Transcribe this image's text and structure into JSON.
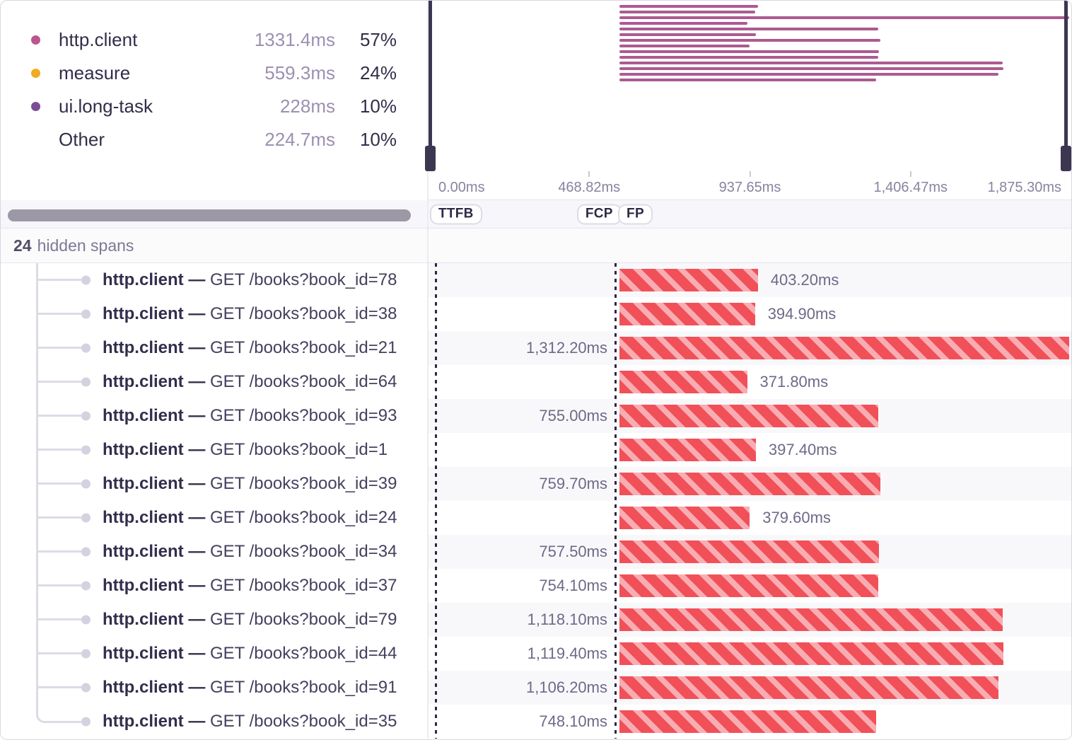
{
  "legend": {
    "items": [
      {
        "label": "http.client",
        "dot_color": "#b9578d",
        "value": "1331.4ms",
        "pct": "57%"
      },
      {
        "label": "measure",
        "dot_color": "#f0ab21",
        "value": "559.3ms",
        "pct": "24%"
      },
      {
        "label": "ui.long-task",
        "dot_color": "#7b4f93",
        "value": "228ms",
        "pct": "10%"
      },
      {
        "label": "Other",
        "dot_color": null,
        "value": "224.7ms",
        "pct": "10%"
      }
    ]
  },
  "timeline": {
    "range_ms": 1875.3,
    "span_start_ms": 557.6,
    "axis_labels": [
      {
        "text": "0.00ms",
        "ms": 0,
        "align": "left"
      },
      {
        "text": "468.82ms",
        "ms": 468.82,
        "align": "center"
      },
      {
        "text": "937.65ms",
        "ms": 937.65,
        "align": "center"
      },
      {
        "text": "1,406.47ms",
        "ms": 1406.47,
        "align": "center"
      },
      {
        "text": "1,875.30ms",
        "ms": 1875.3,
        "align": "right"
      }
    ],
    "ticks_ms": [
      468.82,
      937.65,
      1406.47
    ],
    "marker_lines_ms": [
      19,
      543
    ]
  },
  "vitals": [
    {
      "label": "TTFB",
      "ms": 4
    },
    {
      "label": "FCP",
      "ms": 433
    },
    {
      "label": "FP",
      "ms": 553
    }
  ],
  "hidden_spans": {
    "count": "24",
    "label": "hidden spans"
  },
  "span_rows": [
    {
      "op": "http.client",
      "separator": "—",
      "description": "GET /books?book_id=78",
      "duration_ms": 403.2,
      "duration_label": "403.20ms",
      "label_side": "right"
    },
    {
      "op": "http.client",
      "separator": "—",
      "description": "GET /books?book_id=38",
      "duration_ms": 394.9,
      "duration_label": "394.90ms",
      "label_side": "right"
    },
    {
      "op": "http.client",
      "separator": "—",
      "description": "GET /books?book_id=21",
      "duration_ms": 1312.2,
      "duration_label": "1,312.20ms",
      "label_side": "left"
    },
    {
      "op": "http.client",
      "separator": "—",
      "description": "GET /books?book_id=64",
      "duration_ms": 371.8,
      "duration_label": "371.80ms",
      "label_side": "right"
    },
    {
      "op": "http.client",
      "separator": "—",
      "description": "GET /books?book_id=93",
      "duration_ms": 755.0,
      "duration_label": "755.00ms",
      "label_side": "left"
    },
    {
      "op": "http.client",
      "separator": "—",
      "description": "GET /books?book_id=1",
      "duration_ms": 397.4,
      "duration_label": "397.40ms",
      "label_side": "right"
    },
    {
      "op": "http.client",
      "separator": "—",
      "description": "GET /books?book_id=39",
      "duration_ms": 759.7,
      "duration_label": "759.70ms",
      "label_side": "left"
    },
    {
      "op": "http.client",
      "separator": "—",
      "description": "GET /books?book_id=24",
      "duration_ms": 379.6,
      "duration_label": "379.60ms",
      "label_side": "right"
    },
    {
      "op": "http.client",
      "separator": "—",
      "description": "GET /books?book_id=34",
      "duration_ms": 757.5,
      "duration_label": "757.50ms",
      "label_side": "left"
    },
    {
      "op": "http.client",
      "separator": "—",
      "description": "GET /books?book_id=37",
      "duration_ms": 754.1,
      "duration_label": "754.10ms",
      "label_side": "left"
    },
    {
      "op": "http.client",
      "separator": "—",
      "description": "GET /books?book_id=79",
      "duration_ms": 1118.1,
      "duration_label": "1,118.10ms",
      "label_side": "left"
    },
    {
      "op": "http.client",
      "separator": "—",
      "description": "GET /books?book_id=44",
      "duration_ms": 1119.4,
      "duration_label": "1,119.40ms",
      "label_side": "left"
    },
    {
      "op": "http.client",
      "separator": "—",
      "description": "GET /books?book_id=91",
      "duration_ms": 1106.2,
      "duration_label": "1,106.20ms",
      "label_side": "left"
    },
    {
      "op": "http.client",
      "separator": "—",
      "description": "GET /books?book_id=35",
      "duration_ms": 748.1,
      "duration_label": "748.10ms",
      "label_side": "left"
    }
  ],
  "colors": {
    "minimap_bar": "#ad5a8f",
    "bar_stripe_red": "#f15059",
    "bar_stripe_pink": "#f8adb3"
  }
}
